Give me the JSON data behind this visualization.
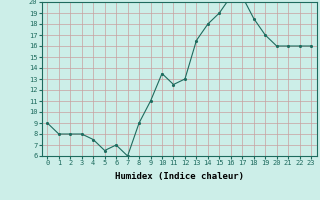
{
  "x": [
    0,
    1,
    2,
    3,
    4,
    5,
    6,
    7,
    8,
    9,
    10,
    11,
    12,
    13,
    14,
    15,
    16,
    17,
    18,
    19,
    20,
    21,
    22,
    23
  ],
  "y": [
    9,
    8,
    8,
    8,
    7.5,
    6.5,
    7,
    6,
    9,
    11,
    13.5,
    12.5,
    13,
    16.5,
    18,
    19,
    20.5,
    20.5,
    18.5,
    17,
    16,
    16,
    16,
    16
  ],
  "xlabel": "Humidex (Indice chaleur)",
  "ylim": [
    6,
    20
  ],
  "xlim": [
    -0.5,
    23.5
  ],
  "yticks": [
    6,
    7,
    8,
    9,
    10,
    11,
    12,
    13,
    14,
    15,
    16,
    17,
    18,
    19,
    20
  ],
  "xticks": [
    0,
    1,
    2,
    3,
    4,
    5,
    6,
    7,
    8,
    9,
    10,
    11,
    12,
    13,
    14,
    15,
    16,
    17,
    18,
    19,
    20,
    21,
    22,
    23
  ],
  "line_color": "#1e6b5e",
  "marker": ".",
  "bg_color": "#cceee8",
  "grid_color": "#c8a0a0",
  "tick_fontsize": 5,
  "xlabel_fontsize": 6.5,
  "xlabel_fontweight": "bold"
}
